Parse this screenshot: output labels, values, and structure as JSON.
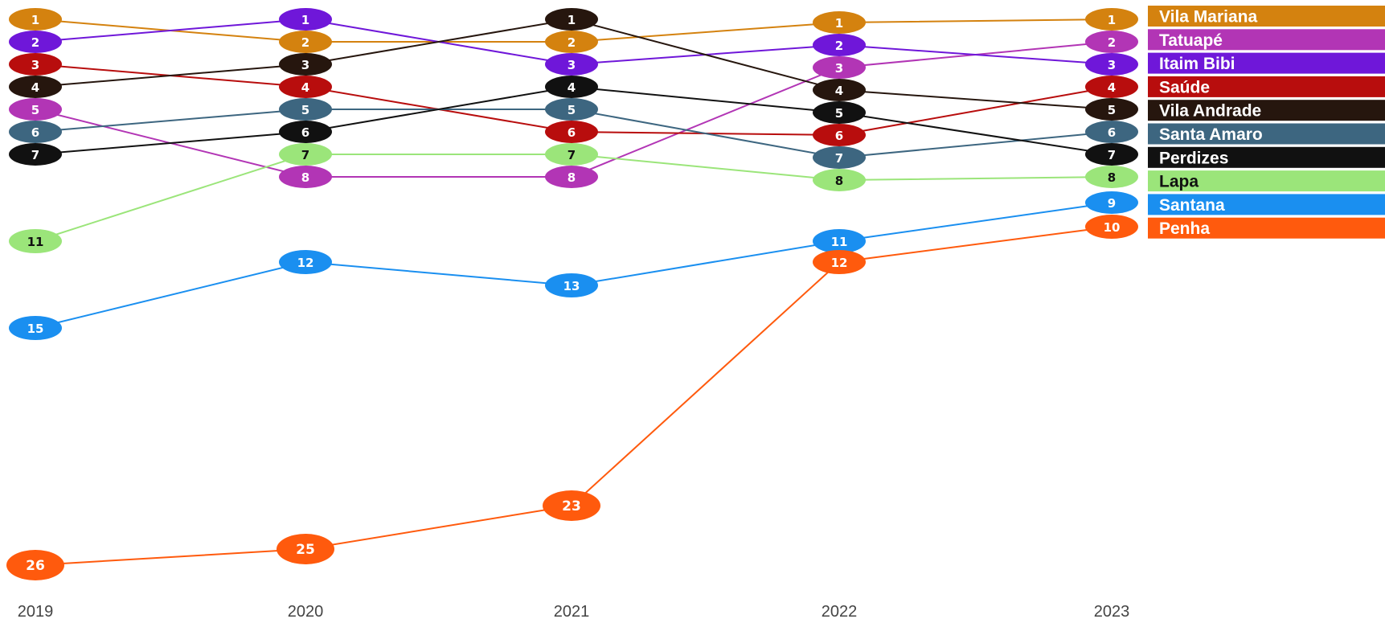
{
  "chart_data": {
    "type": "line",
    "x": [
      "2019",
      "2020",
      "2021",
      "2022",
      "2023"
    ],
    "series": [
      {
        "name": "Vila Mariana",
        "color": "#D4820F",
        "values": [
          1,
          2,
          2,
          1,
          1
        ]
      },
      {
        "name": "Tatuapé",
        "color": "#B235B5",
        "values": [
          5,
          8,
          8,
          3,
          2
        ]
      },
      {
        "name": "Itaim Bibi",
        "color": "#6F17D9",
        "values": [
          2,
          1,
          3,
          2,
          3
        ]
      },
      {
        "name": "Saúde",
        "color": "#B80D0D",
        "values": [
          3,
          4,
          6,
          6,
          4
        ]
      },
      {
        "name": "Vila Andrade",
        "color": "#26160E",
        "values": [
          4,
          3,
          1,
          4,
          5
        ]
      },
      {
        "name": "Santa Amaro",
        "color": "#3D6680",
        "values": [
          6,
          5,
          5,
          7,
          6
        ]
      },
      {
        "name": "Perdizes",
        "color": "#111111",
        "values": [
          7,
          6,
          4,
          5,
          7
        ]
      },
      {
        "name": "Lapa",
        "color": "#9BE57A",
        "label_color": "#111111",
        "values": [
          11,
          7,
          7,
          8,
          8
        ]
      },
      {
        "name": "Santana",
        "color": "#1A8FF0",
        "values": [
          15,
          12,
          13,
          11,
          9
        ]
      },
      {
        "name": "Penha",
        "color": "#FF5A0D",
        "values": [
          26,
          25,
          23,
          12,
          10
        ]
      }
    ],
    "y_scale": "rank",
    "y_inverted": true,
    "grid": false,
    "legend": "right"
  }
}
